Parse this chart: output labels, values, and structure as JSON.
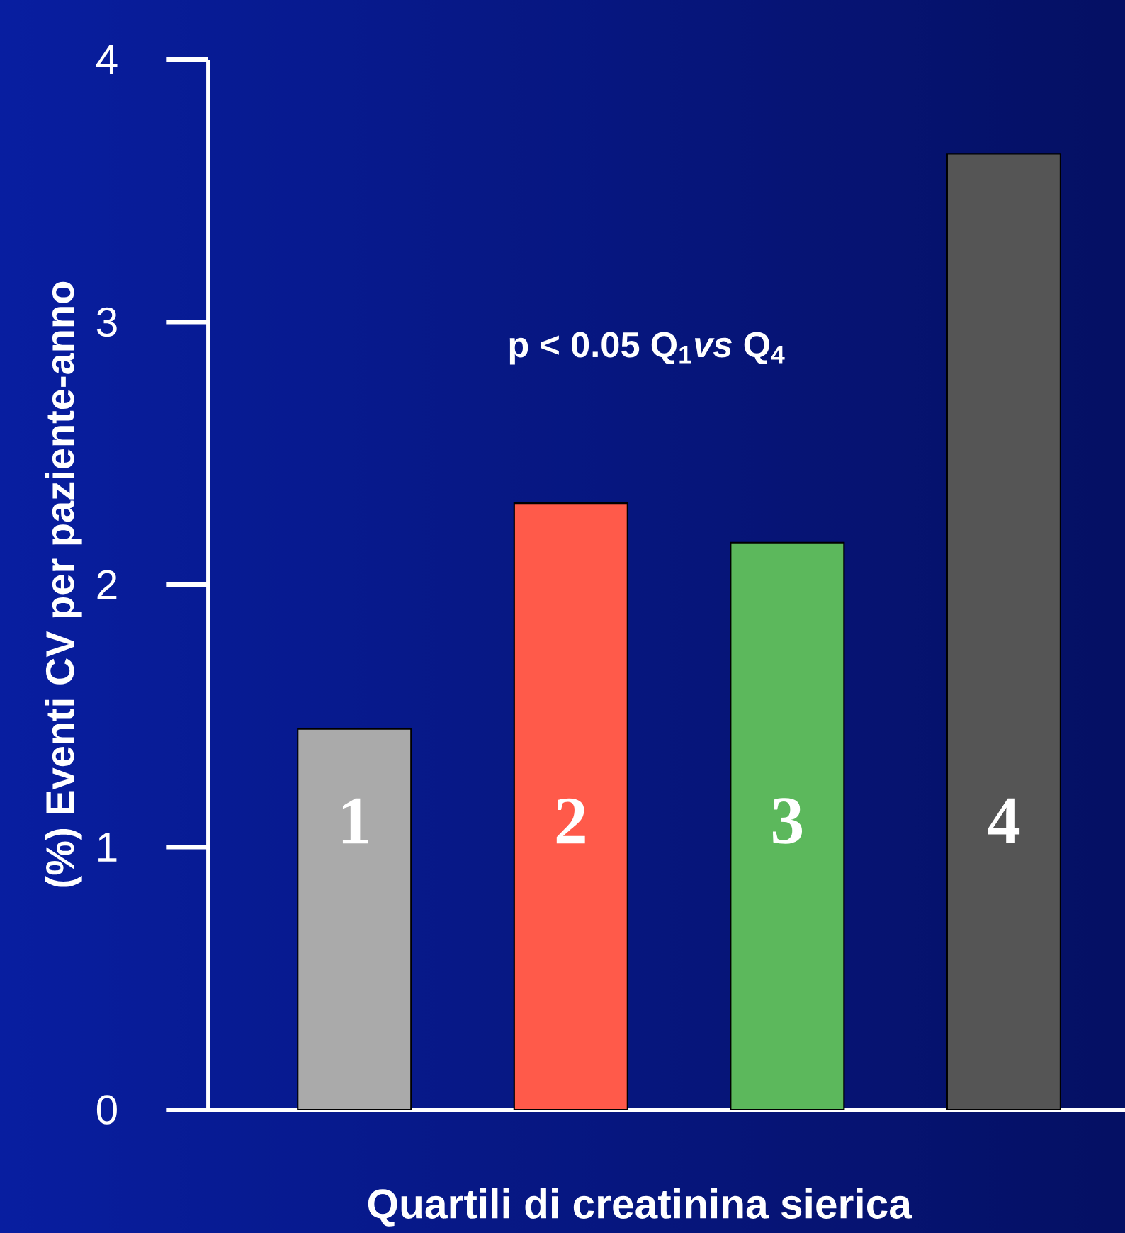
{
  "chart_data": {
    "type": "bar",
    "xlabel": "Quartili di creatinina sierica",
    "ylabel": "(%) Eventi CV per  paziente-anno",
    "categories": [
      "1",
      "2",
      "3",
      "4"
    ],
    "values": [
      1.45,
      2.31,
      2.16,
      3.64
    ],
    "colors": [
      "#aaaaaa",
      "#ff5a4a",
      "#5cb85c",
      "#555555"
    ],
    "ylim": [
      0,
      4
    ],
    "yticks": [
      0,
      1,
      2,
      3,
      4
    ],
    "annotations": [
      "p < 0.05 Q$_{1}$*vs* Q$_{4}$"
    ],
    "grid": false
  }
}
